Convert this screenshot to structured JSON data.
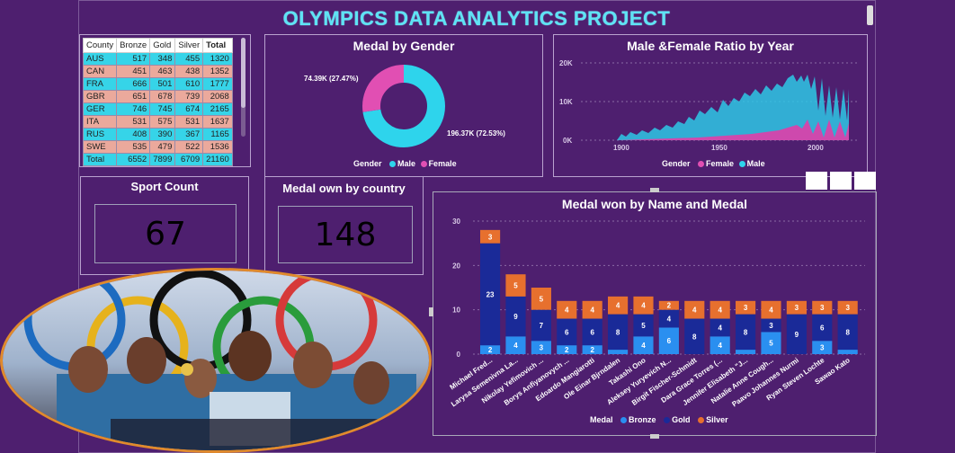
{
  "title": "OLYMPICS  DATA ANALYTICS PROJECT",
  "table": {
    "headers": [
      "County",
      "Bronze",
      "Gold",
      "Silver",
      "Total"
    ],
    "rows": [
      [
        "AUS",
        "517",
        "348",
        "455",
        "1320"
      ],
      [
        "CAN",
        "451",
        "463",
        "438",
        "1352"
      ],
      [
        "FRA",
        "666",
        "501",
        "610",
        "1777"
      ],
      [
        "GBR",
        "651",
        "678",
        "739",
        "2068"
      ],
      [
        "GER",
        "746",
        "745",
        "674",
        "2165"
      ],
      [
        "ITA",
        "531",
        "575",
        "531",
        "1637"
      ],
      [
        "RUS",
        "408",
        "390",
        "367",
        "1165"
      ],
      [
        "SWE",
        "535",
        "479",
        "522",
        "1536"
      ]
    ],
    "total": [
      "Total",
      "6552",
      "7899",
      "6709",
      "21160"
    ]
  },
  "gender": {
    "title": "Medal by Gender",
    "female_label": "74.39K (27.47%)",
    "male_label": "196.37K (72.53%)",
    "legend_title": "Gender",
    "legend_male": "Male",
    "legend_female": "Female",
    "male_pct": 72.53,
    "colors": {
      "male": "#2ed4ec",
      "female": "#e14fb3"
    }
  },
  "ratio": {
    "title": "Male &Female Ratio by Year",
    "yticks": [
      "20K",
      "10K",
      "0K"
    ],
    "xticks": [
      "1900",
      "1950",
      "2000"
    ],
    "legend_title": "Gender",
    "legend_female": "Female",
    "legend_male": "Male"
  },
  "sport_count": {
    "title": "Sport Count",
    "value": "67"
  },
  "country_count": {
    "title": "Medal own by country",
    "value": "148"
  },
  "chart_data": {
    "type": "bar",
    "stacked": true,
    "title": "Medal won by Name and Medal",
    "categories": [
      "Michael Fred...",
      "Larysa Semenivna La...",
      "Nikolay Yefimovich ...",
      "Borys Anfiyanovych ...",
      "Edoardo Mangiarotti",
      "Ole Einar Bjrndalen",
      "Takashi Ono",
      "Aleksey Yuryevich N...",
      "Birgit Fischer-Schmidt",
      "Dara Grace Torres (...",
      "Jennifer Elisabeth \"J...",
      "Natalie Anne Cough...",
      "Paavo Johannes Nurmi",
      "Ryan Steven Lochte",
      "Sawao Kato"
    ],
    "series": [
      {
        "name": "Bronze",
        "color": "#2a8ff0",
        "values": [
          2,
          4,
          3,
          2,
          2,
          1,
          4,
          6,
          0,
          4,
          1,
          5,
          0,
          3,
          1
        ]
      },
      {
        "name": "Gold",
        "color": "#1a2a98",
        "values": [
          23,
          9,
          7,
          6,
          6,
          8,
          5,
          4,
          8,
          4,
          8,
          3,
          9,
          6,
          8
        ]
      },
      {
        "name": "Silver",
        "color": "#e7702e",
        "values": [
          3,
          5,
          5,
          4,
          4,
          4,
          4,
          2,
          4,
          4,
          3,
          4,
          3,
          3,
          3
        ]
      }
    ],
    "ylim": [
      0,
      30
    ],
    "yticks": [
      0,
      10,
      20,
      30
    ],
    "legend_title": "Medal"
  }
}
